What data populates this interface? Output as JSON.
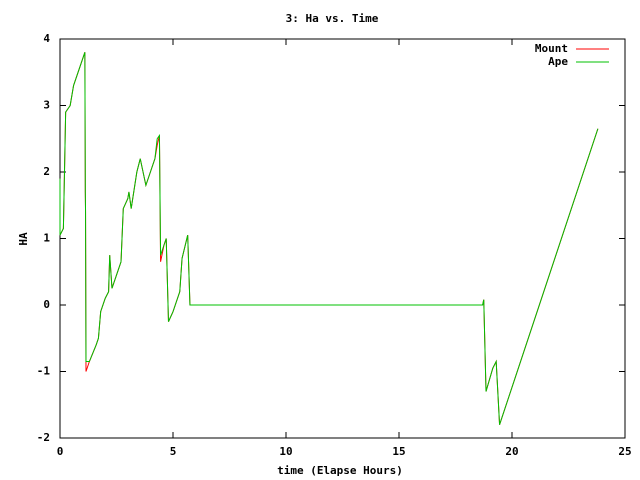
{
  "chart_data": {
    "type": "line",
    "title": "3: Ha vs. Time",
    "x_label": "time (Elapse Hours)",
    "y_label": "HA",
    "x": [
      0,
      0,
      0.15,
      0.25,
      0.45,
      0.6,
      1.1,
      1.12,
      1.13,
      1.15,
      1.3,
      1.6,
      1.7,
      1.8,
      2.0,
      2.15,
      2.2,
      2.3,
      2.5,
      2.7,
      2.8,
      3.0,
      3.05,
      3.15,
      3.4,
      3.55,
      3.8,
      4.0,
      4.2,
      4.3,
      4.4,
      4.45,
      4.6,
      4.7,
      4.8,
      5.0,
      5.3,
      5.4,
      5.65,
      5.75,
      18.7,
      18.75,
      18.85,
      19.15,
      19.3,
      19.45,
      23.8
    ],
    "series": [
      {
        "name": "Mount",
        "color": "#ff0000",
        "values": [
          1.9,
          1.05,
          1.15,
          2.9,
          3.0,
          3.3,
          3.8,
          1.7,
          1.4,
          -1.0,
          -0.85,
          -0.6,
          -0.5,
          -0.1,
          0.1,
          0.2,
          0.75,
          0.25,
          0.45,
          0.65,
          1.45,
          1.6,
          1.7,
          1.45,
          2.0,
          2.2,
          1.8,
          2.0,
          2.2,
          2.4,
          2.55,
          0.65,
          0.9,
          1.0,
          -0.25,
          -0.1,
          0.2,
          0.7,
          1.05,
          0,
          0,
          0.08,
          -1.3,
          -0.95,
          -0.85,
          -1.8,
          2.65
        ]
      },
      {
        "name": "Ape",
        "color": "#00c000",
        "values": [
          1.9,
          1.05,
          1.15,
          2.9,
          3.0,
          3.3,
          3.8,
          1.7,
          1.4,
          -0.85,
          -0.85,
          -0.6,
          -0.5,
          -0.1,
          0.1,
          0.2,
          0.75,
          0.25,
          0.45,
          0.65,
          1.45,
          1.6,
          1.7,
          1.45,
          2.0,
          2.2,
          1.8,
          2.0,
          2.2,
          2.5,
          2.55,
          0.75,
          0.9,
          1.0,
          -0.25,
          -0.1,
          0.2,
          0.7,
          1.05,
          0,
          0,
          0.08,
          -1.3,
          -0.95,
          -0.85,
          -1.8,
          2.65
        ]
      }
    ],
    "xlim": [
      0,
      25
    ],
    "xticks": [
      0,
      5,
      10,
      15,
      20,
      25
    ],
    "ylim": [
      -2,
      4
    ],
    "yticks": [
      -2,
      -1,
      0,
      1,
      2,
      3,
      4
    ],
    "legend": "top-right",
    "grid": false
  }
}
